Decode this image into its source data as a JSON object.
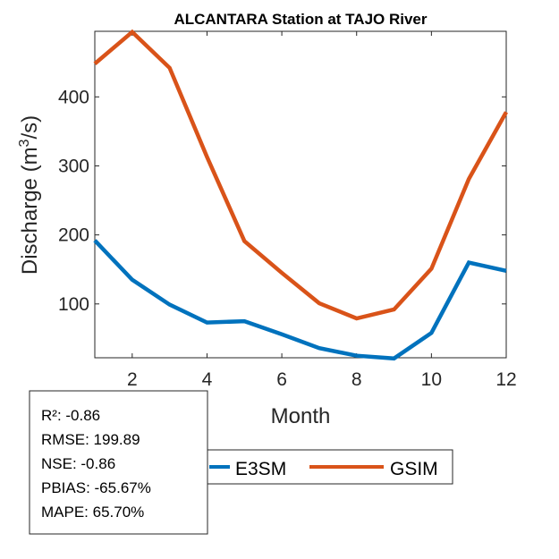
{
  "chart_data": {
    "type": "line",
    "title": "ALCANTARA  Station at  TAJO  River",
    "xlabel": "Month",
    "ylabel_main": "Discharge (m",
    "ylabel_sup": "3",
    "ylabel_tail": "/s)",
    "x": [
      1,
      2,
      3,
      4,
      5,
      6,
      7,
      8,
      9,
      10,
      11,
      12
    ],
    "xlim": [
      1,
      12
    ],
    "ylim": [
      22,
      495
    ],
    "xticks": [
      2,
      4,
      6,
      8,
      10,
      12
    ],
    "yticks": [
      100,
      200,
      300,
      400
    ],
    "grid": false,
    "legend_position": "bottom-center",
    "series": [
      {
        "name": "E3SM",
        "color": "#0072BD",
        "values": [
          192,
          135,
          99,
          73,
          75,
          56,
          36,
          25,
          21,
          58,
          160,
          148
        ]
      },
      {
        "name": "GSIM",
        "color": "#D95319",
        "values": [
          448,
          494,
          442,
          313,
          191,
          145,
          101,
          79,
          92,
          151,
          281,
          378
        ]
      }
    ]
  },
  "stats": [
    "R²: -0.86",
    "RMSE: 199.89",
    "NSE: -0.86",
    "PBIAS: -65.67%",
    "MAPE: 65.70%"
  ]
}
